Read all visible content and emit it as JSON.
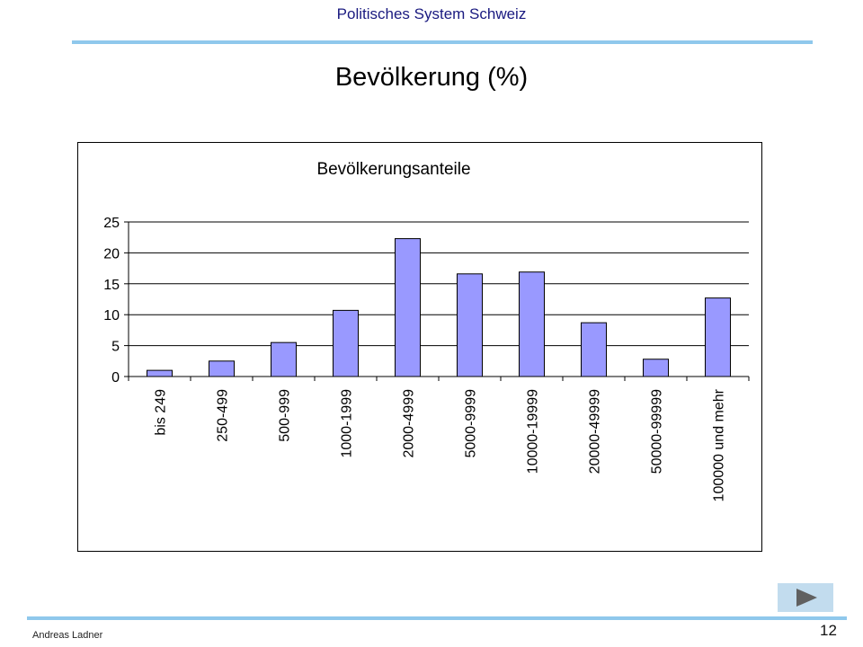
{
  "header": {
    "title": "Politisches System Schweiz"
  },
  "slide": {
    "title": "Bevölkerung (%)"
  },
  "footer": {
    "author": "Andreas Ladner",
    "page_number": "12"
  },
  "nav": {
    "next_icon": "play-triangle-icon"
  },
  "colors": {
    "bar_fill": "#9999ff",
    "bar_stroke": "#000000",
    "rule": "#8fc8ec",
    "nav_bg": "#c2dcee",
    "nav_icon": "#606060"
  },
  "chart_data": {
    "type": "bar",
    "title": "Bevölkerungsanteile",
    "categories": [
      "bis 249",
      "250-499",
      "500-999",
      "1000-1999",
      "2000-4999",
      "5000-9999",
      "10000-19999",
      "20000-49999",
      "50000-99999",
      "100000 und mehr"
    ],
    "values": [
      1.0,
      2.5,
      5.5,
      10.7,
      22.3,
      16.6,
      16.9,
      8.7,
      2.8,
      12.7
    ],
    "ylim": [
      0,
      25
    ],
    "yticks": [
      0,
      5,
      10,
      15,
      20,
      25
    ],
    "grid": true,
    "xlabel": "",
    "ylabel": ""
  }
}
